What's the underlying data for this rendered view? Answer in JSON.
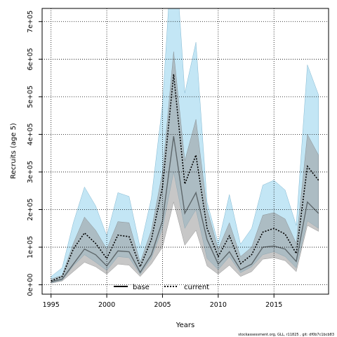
{
  "chart_data": {
    "type": "area",
    "xlabel": "Years",
    "ylabel": "Recruits (age 5)",
    "xlim": [
      1994.2,
      2019.9
    ],
    "ylim": [
      -25000,
      735000
    ],
    "x_ticks": [
      "1995",
      "2000",
      "2005",
      "2010",
      "2015"
    ],
    "x_tick_values": [
      1995,
      2000,
      2005,
      2010,
      2015
    ],
    "y_ticks": [
      "0e+00",
      "1e+05",
      "2e+05",
      "3e+05",
      "4e+05",
      "5e+05",
      "6e+05",
      "7e+05"
    ],
    "y_tick_values": [
      0,
      100000,
      200000,
      300000,
      400000,
      500000,
      600000,
      700000
    ],
    "grid": true,
    "legend_position": "bottom-center",
    "x": [
      1995,
      1996,
      1997,
      1998,
      1999,
      2000,
      2001,
      2002,
      2003,
      2004,
      2005,
      2006,
      2007,
      2008,
      2009,
      2010,
      2011,
      2012,
      2013,
      2014,
      2015,
      2016,
      2017,
      2018,
      2019
    ],
    "series": [
      {
        "name": "base",
        "line_style": "solid",
        "line_color": "#000000",
        "band_color": "#999999",
        "values": [
          8000,
          15000,
          55000,
          95000,
          80000,
          50000,
          90000,
          88000,
          33000,
          80000,
          170000,
          395000,
          190000,
          245000,
          120000,
          55000,
          88000,
          40000,
          55000,
          100000,
          103000,
          95000,
          62000,
          220000,
          190000
        ],
        "lower": [
          4000,
          10000,
          35000,
          60000,
          48000,
          28000,
          55000,
          52000,
          22000,
          55000,
          100000,
          220000,
          105000,
          145000,
          50000,
          28000,
          52000,
          22000,
          35000,
          68000,
          72000,
          64000,
          35000,
          158000,
          142000
        ],
        "upper": [
          15000,
          25000,
          110000,
          180000,
          145000,
          95000,
          168000,
          165000,
          60000,
          145000,
          300000,
          620000,
          330000,
          440000,
          200000,
          95000,
          165000,
          75000,
          100000,
          185000,
          192000,
          175000,
          110000,
          400000,
          345000
        ]
      },
      {
        "name": "current",
        "line_style": "dotted",
        "line_color": "#000000",
        "band_color": "#87ceeb",
        "values": [
          10000,
          22000,
          95000,
          138000,
          110000,
          70000,
          132000,
          128000,
          48000,
          120000,
          260000,
          560000,
          268000,
          345000,
          150000,
          75000,
          130000,
          56000,
          80000,
          140000,
          150000,
          135000,
          83000,
          315000,
          278000
        ],
        "lower": [
          5000,
          12000,
          50000,
          80000,
          60000,
          38000,
          75000,
          72000,
          28000,
          70000,
          150000,
          300000,
          150000,
          200000,
          70000,
          40000,
          75000,
          32000,
          48000,
          80000,
          88000,
          75000,
          45000,
          170000,
          150000
        ],
        "upper": [
          22000,
          45000,
          165000,
          260000,
          210000,
          130000,
          245000,
          235000,
          98000,
          230000,
          480000,
          960000,
          510000,
          645000,
          220000,
          110000,
          240000,
          108000,
          150000,
          265000,
          278000,
          252000,
          158000,
          585000,
          505000
        ]
      }
    ]
  },
  "footer": "stockassessment.org, GLL, r11825 , git: df0b7c1bcb83"
}
